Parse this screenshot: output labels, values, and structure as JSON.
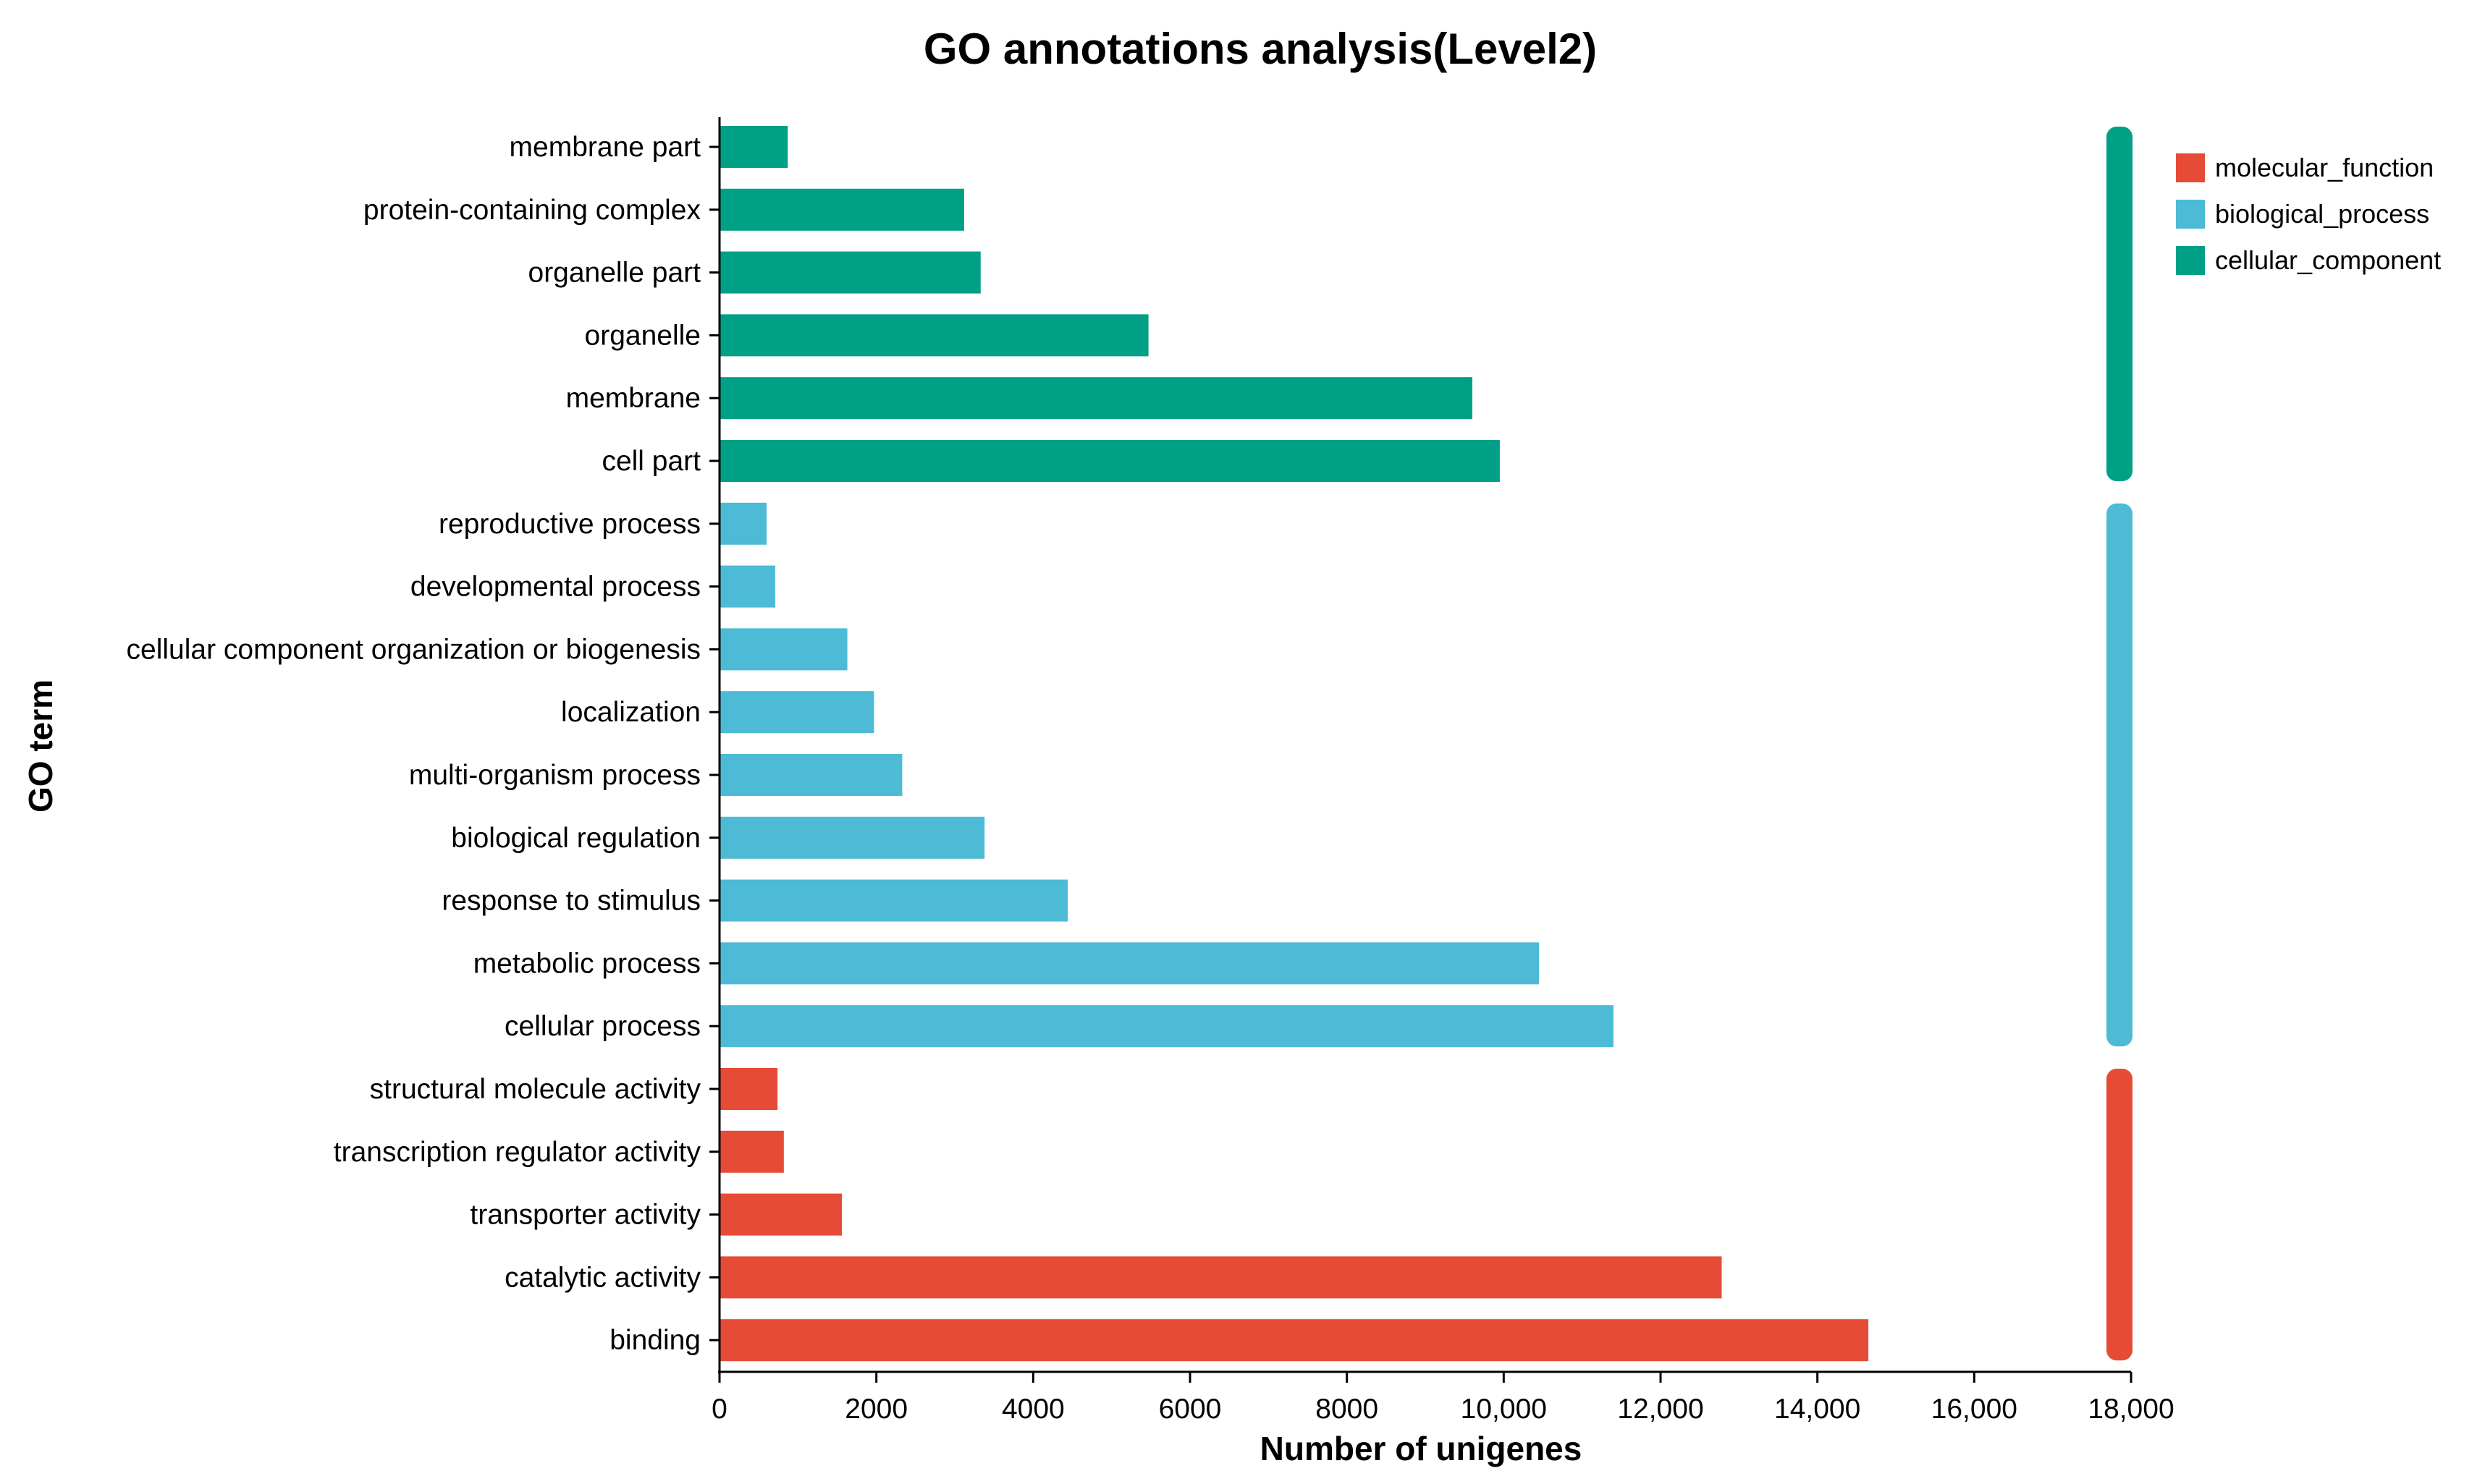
{
  "chart_data": {
    "type": "bar",
    "orientation": "horizontal",
    "title": "GO annotations analysis(Level2)",
    "xlabel": "Number of unigenes",
    "ylabel": "GO term",
    "xlim": [
      0,
      18000
    ],
    "xticks": [
      "0",
      "2000",
      "4000",
      "6000",
      "8000",
      "10,000",
      "12,000",
      "14,000",
      "16,000",
      "18,000"
    ],
    "xtick_values": [
      0,
      2000,
      4000,
      6000,
      8000,
      10000,
      12000,
      14000,
      16000,
      18000
    ],
    "grid": false,
    "legend_position": "top-right",
    "colors": {
      "molecular_function": "#e64b35",
      "biological_process": "#4dbbd5",
      "cellular_component": "#00a087"
    },
    "series": [
      {
        "name": "molecular_function",
        "color": "#e64b35"
      },
      {
        "name": "biological_process",
        "color": "#4dbbd5"
      },
      {
        "name": "cellular_component",
        "color": "#00a087"
      }
    ],
    "bars": [
      {
        "label": "membrane part",
        "value": 870,
        "group": "cellular_component"
      },
      {
        "label": "protein-containing complex",
        "value": 3120,
        "group": "cellular_component"
      },
      {
        "label": "organelle part",
        "value": 3330,
        "group": "cellular_component"
      },
      {
        "label": "organelle",
        "value": 5470,
        "group": "cellular_component"
      },
      {
        "label": "membrane",
        "value": 9600,
        "group": "cellular_component"
      },
      {
        "label": "cell part",
        "value": 9950,
        "group": "cellular_component"
      },
      {
        "label": "reproductive process",
        "value": 600,
        "group": "biological_process"
      },
      {
        "label": "developmental process",
        "value": 710,
        "group": "biological_process"
      },
      {
        "label": "cellular component organization or biogenesis",
        "value": 1630,
        "group": "biological_process"
      },
      {
        "label": "localization",
        "value": 1970,
        "group": "biological_process"
      },
      {
        "label": "multi-organism process",
        "value": 2330,
        "group": "biological_process"
      },
      {
        "label": "biological regulation",
        "value": 3380,
        "group": "biological_process"
      },
      {
        "label": "response to stimulus",
        "value": 4440,
        "group": "biological_process"
      },
      {
        "label": "metabolic process",
        "value": 10450,
        "group": "biological_process"
      },
      {
        "label": "cellular process",
        "value": 11400,
        "group": "biological_process"
      },
      {
        "label": "structural molecule activity",
        "value": 740,
        "group": "molecular_function"
      },
      {
        "label": "transcription regulator activity",
        "value": 820,
        "group": "molecular_function"
      },
      {
        "label": "transporter activity",
        "value": 1560,
        "group": "molecular_function"
      },
      {
        "label": "catalytic activity",
        "value": 12780,
        "group": "molecular_function"
      },
      {
        "label": "binding",
        "value": 14650,
        "group": "molecular_function"
      }
    ]
  }
}
